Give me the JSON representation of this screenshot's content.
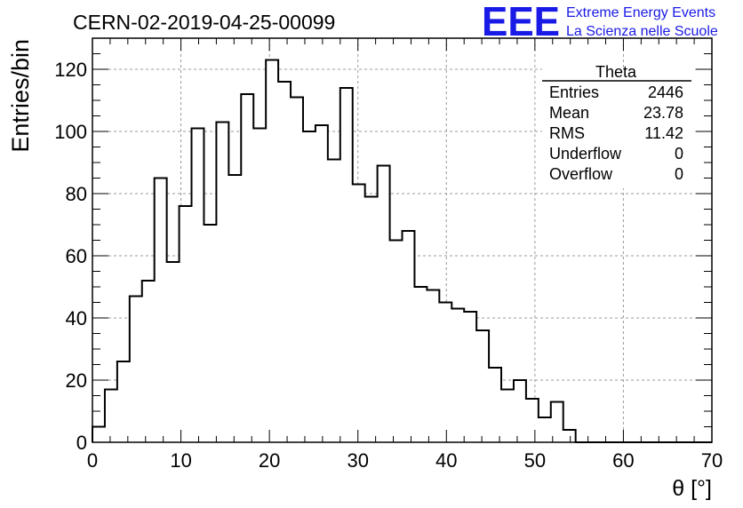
{
  "chart_data": {
    "type": "histogram",
    "title": "CERN-02-2019-04-25-00099",
    "xlabel": "θ [°]",
    "ylabel": "Entries/bin",
    "xlim": [
      0,
      70
    ],
    "ylim": [
      0,
      130
    ],
    "xticks": [
      0,
      10,
      20,
      30,
      40,
      50,
      60,
      70
    ],
    "yticks": [
      0,
      20,
      40,
      60,
      80,
      100,
      120
    ],
    "grid": true,
    "bin_width": 1.4,
    "bin_start": 0,
    "series": [
      {
        "values": [
          5,
          17,
          26,
          47,
          52,
          85,
          58,
          76,
          101,
          70,
          103,
          86,
          112,
          101,
          123,
          116,
          111,
          100,
          102,
          91,
          114,
          83,
          79,
          89,
          65,
          68,
          50,
          49,
          45,
          43,
          42,
          36,
          24,
          17,
          20,
          14,
          8,
          13,
          4,
          0,
          0,
          0,
          0,
          0,
          0,
          0,
          0,
          0,
          0,
          0
        ]
      }
    ],
    "stats_box": {
      "title": "Theta",
      "rows": [
        {
          "label": "Entries",
          "value": "2446"
        },
        {
          "label": "Mean",
          "value": "23.78"
        },
        {
          "label": "RMS",
          "value": "11.42"
        },
        {
          "label": "Underflow",
          "value": "0"
        },
        {
          "label": "Overflow",
          "value": "0"
        }
      ]
    },
    "logo": {
      "mark": "EEE",
      "line1": "Extreme Energy Events",
      "line2": "La Scienza nelle Scuole",
      "color": "#1a1ae6"
    }
  }
}
